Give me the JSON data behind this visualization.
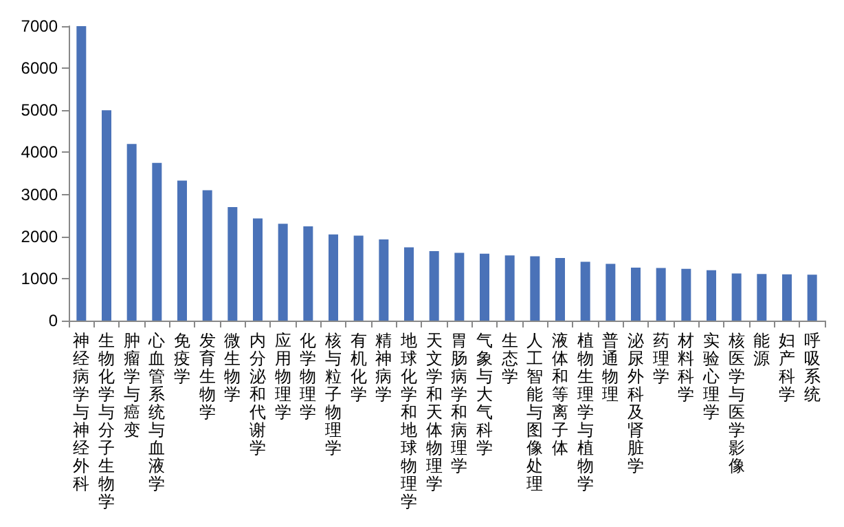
{
  "chart_data": {
    "type": "bar",
    "categories": [
      "神经病学与神经外科",
      "生物化学与分子生物学",
      "肿瘤学与癌变",
      "心血管系统与血液学",
      "免疫学",
      "发育生物学",
      "微生物学",
      "内分泌和代谢学",
      "应用物理学",
      "化学物理学",
      "核与粒子物理学",
      "有机化学",
      "精神病学",
      "地球化学和地球物理学",
      "天文学和天体物理学",
      "胃肠病学和病理学",
      "气象与大气科学",
      "生态学",
      "人工智能与图像处理",
      "液体和等离子体",
      "植物生理学与植物学",
      "普通物理",
      "泌尿外科及肾脏学",
      "药理学",
      "材料科学",
      "实验心理学",
      "核医学与医学影像",
      "能源",
      "妇产科学",
      "呼吸系统"
    ],
    "values": [
      7000,
      5000,
      4200,
      3750,
      3330,
      3100,
      2700,
      2430,
      2300,
      2240,
      2050,
      2020,
      1930,
      1740,
      1650,
      1610,
      1590,
      1550,
      1530,
      1490,
      1400,
      1350,
      1260,
      1250,
      1230,
      1200,
      1120,
      1110,
      1100,
      1090
    ],
    "color": "#4a72b8",
    "ylim": [
      0,
      7000
    ],
    "yticks": [
      0,
      1000,
      2000,
      3000,
      4000,
      5000,
      6000,
      7000
    ],
    "grid": false
  }
}
